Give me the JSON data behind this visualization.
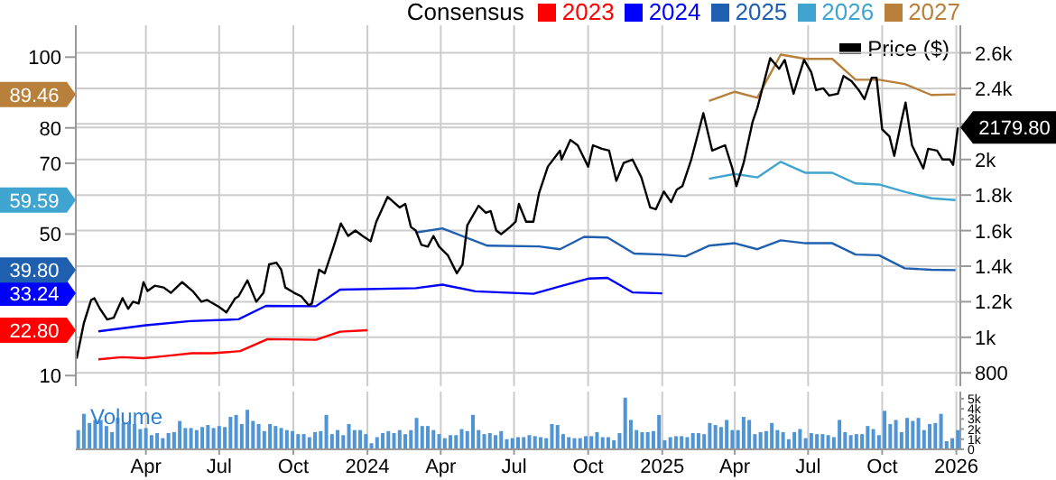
{
  "chart_data": [
    {
      "type": "line",
      "legend_title": "Consensus",
      "legend": "top right",
      "grid": true,
      "tick_labels": "y",
      "xlim": [
        "2023-01-04",
        "2026-01-06"
      ],
      "xticks": [
        {
          "value": "2023-04-01",
          "label": null
        },
        {
          "value": "2023-07-01",
          "label": null
        },
        {
          "value": "2023-10-01",
          "label": null
        },
        {
          "value": "2024-01-01",
          "label": null
        },
        {
          "value": "2024-04-01",
          "label": null
        },
        {
          "value": "2024-07-01",
          "label": null
        },
        {
          "value": "2024-10-01",
          "label": null
        },
        {
          "value": "2025-01-01",
          "label": null
        },
        {
          "value": "2025-04-01",
          "label": null
        },
        {
          "value": "2025-07-01",
          "label": null
        },
        {
          "value": "2025-10-01",
          "label": null
        },
        {
          "value": "2026-01-01",
          "label": null
        }
      ],
      "ylim": [
        7,
        109
      ],
      "yticks": [
        10,
        {
          "value": 22.8,
          "label": "22.80"
        },
        {
          "value": 33.24,
          "label": "33.24"
        },
        {
          "value": 39.8,
          "label": "39.80"
        },
        50,
        {
          "value": 59.59,
          "label": "59.59"
        },
        70,
        80,
        {
          "value": 89.46,
          "label": "89.46"
        },
        100
      ],
      "y2lim": [
        725,
        2755
      ],
      "y2ticks": [
        800,
        {
          "value": 1000,
          "label": "1k"
        },
        {
          "value": 1200,
          "label": "1.2k"
        },
        {
          "value": 1400,
          "label": "1.4k"
        },
        {
          "value": 1600,
          "label": "1.6k"
        },
        {
          "value": 1800,
          "label": "1.8k"
        },
        {
          "value": 2000,
          "label": "2k"
        },
        {
          "value": 2179.8,
          "label": "2179.80"
        },
        {
          "value": 2200,
          "label": null
        },
        {
          "value": 2400,
          "label": "2.4k"
        },
        {
          "value": 2600,
          "label": "2.6k"
        }
      ],
      "series": [
        {
          "name": "2023",
          "color": "#ff0000",
          "x": [
            "2023-02-01",
            "2023-03-02",
            "2023-03-29",
            "2023-04-25",
            "2023-05-28",
            "2023-06-22",
            "2023-07-27",
            "2023-08-30",
            "2023-10-29",
            "2023-11-28",
            "2024-01-01"
          ],
          "values": [
            14.6,
            15.2,
            14.9,
            15.5,
            16.3,
            16.3,
            16.9,
            20.3,
            20.1,
            22.4,
            22.8
          ]
        },
        {
          "name": "2024",
          "color": "#0000ff",
          "x": [
            "2023-02-01",
            "2023-04-01",
            "2023-05-26",
            "2023-07-25",
            "2023-08-28",
            "2023-10-29",
            "2023-11-28",
            "2024-03-01",
            "2024-04-03",
            "2024-05-14",
            "2024-07-25",
            "2024-08-27",
            "2024-10-01",
            "2024-10-25",
            "2024-11-25",
            "2025-01-01"
          ],
          "values": [
            22.5,
            24.2,
            25.4,
            25.9,
            29.7,
            29.6,
            34.3,
            34.7,
            35.7,
            33.8,
            33.1,
            35.2,
            37.4,
            37.6,
            33.5,
            33.24
          ]
        },
        {
          "name": "2025",
          "color": "#1f5fb0",
          "x": [
            "2024-03-01",
            "2024-04-03",
            "2024-05-29",
            "2024-08-01",
            "2024-08-27",
            "2024-09-26",
            "2024-10-25",
            "2024-11-27",
            "2025-01-01",
            "2025-01-30",
            "2025-02-28",
            "2025-04-01",
            "2025-04-29",
            "2025-05-28",
            "2025-06-28",
            "2025-07-31",
            "2025-08-29",
            "2025-09-27",
            "2025-10-29",
            "2025-12-01",
            "2025-12-31"
          ],
          "values": [
            50.4,
            51.6,
            46.7,
            46.5,
            45.7,
            49.2,
            49.0,
            44.5,
            44.2,
            43.7,
            46.7,
            47.4,
            45.7,
            48.2,
            47.4,
            47.4,
            44.2,
            44.0,
            40.3,
            39.9,
            39.8
          ]
        },
        {
          "name": "2026",
          "color": "#3fa4d0",
          "x": [
            "2025-02-28",
            "2025-04-01",
            "2025-04-29",
            "2025-05-28",
            "2025-06-28",
            "2025-07-31",
            "2025-08-29",
            "2025-09-27",
            "2025-10-29",
            "2025-12-01",
            "2025-12-31"
          ],
          "values": [
            65.6,
            67.0,
            66.0,
            70.4,
            67.3,
            67.3,
            64.3,
            64.0,
            61.9,
            60.1,
            59.59
          ]
        },
        {
          "name": "2027",
          "color": "#b8803a",
          "x": [
            "2025-02-28",
            "2025-04-01",
            "2025-04-29",
            "2025-05-28",
            "2025-06-28",
            "2025-07-31",
            "2025-08-29",
            "2025-09-27",
            "2025-10-29",
            "2025-12-01",
            "2025-12-31"
          ],
          "values": [
            87.6,
            90.2,
            88.5,
            100.7,
            99.5,
            99.5,
            93.6,
            93.6,
            92.4,
            89.3,
            89.46
          ]
        },
        {
          "name": "Price ($)",
          "color": "#000000",
          "axis": "y2",
          "x": [
            "2023-01-05",
            "2023-01-14",
            "2023-01-23",
            "2023-01-27",
            "2023-02-03",
            "2023-02-12",
            "2023-02-20",
            "2023-03-03",
            "2023-03-10",
            "2023-03-16",
            "2023-03-23",
            "2023-03-29",
            "2023-04-03",
            "2023-04-12",
            "2023-04-23",
            "2023-05-02",
            "2023-05-16",
            "2023-05-29",
            "2023-06-09",
            "2023-06-16",
            "2023-07-01",
            "2023-07-10",
            "2023-07-21",
            "2023-07-25",
            "2023-08-05",
            "2023-08-16",
            "2023-08-25",
            "2023-09-01",
            "2023-09-10",
            "2023-09-16",
            "2023-09-21",
            "2023-10-02",
            "2023-10-11",
            "2023-10-20",
            "2023-10-24",
            "2023-11-02",
            "2023-11-09",
            "2023-11-20",
            "2023-11-29",
            "2023-12-08",
            "2023-12-17",
            "2023-12-26",
            "2024-01-05",
            "2024-01-12",
            "2024-01-26",
            "2024-02-10",
            "2024-02-17",
            "2024-02-24",
            "2024-03-01",
            "2024-03-08",
            "2024-03-16",
            "2024-03-23",
            "2024-03-30",
            "2024-04-10",
            "2024-04-21",
            "2024-04-28",
            "2024-05-04",
            "2024-05-18",
            "2024-05-27",
            "2024-06-02",
            "2024-06-09",
            "2024-06-15",
            "2024-06-26",
            "2024-07-03",
            "2024-07-07",
            "2024-07-16",
            "2024-07-25",
            "2024-08-01",
            "2024-08-12",
            "2024-08-27",
            "2024-08-29",
            "2024-09-09",
            "2024-09-18",
            "2024-10-01",
            "2024-10-07",
            "2024-10-18",
            "2024-10-27",
            "2024-11-05",
            "2024-11-14",
            "2024-11-25",
            "2024-12-06",
            "2024-12-17",
            "2024-12-24",
            "2025-01-03",
            "2025-01-12",
            "2025-01-19",
            "2025-01-26",
            "2025-02-06",
            "2025-02-21",
            "2025-03-04",
            "2025-03-20",
            "2025-03-29",
            "2025-04-03",
            "2025-04-12",
            "2025-04-23",
            "2025-04-29",
            "2025-05-15",
            "2025-05-26",
            "2025-06-02",
            "2025-06-13",
            "2025-06-19",
            "2025-06-26",
            "2025-07-05",
            "2025-07-11",
            "2025-07-20",
            "2025-07-27",
            "2025-08-07",
            "2025-08-14",
            "2025-08-24",
            "2025-09-02",
            "2025-09-09",
            "2025-09-18",
            "2025-09-24",
            "2025-10-01",
            "2025-10-10",
            "2025-10-16",
            "2025-10-25",
            "2025-10-30",
            "2025-11-07",
            "2025-11-21",
            "2025-11-27",
            "2025-12-08",
            "2025-12-15",
            "2025-12-24",
            "2025-12-28",
            "2026-01-03"
          ],
          "values": [
            880,
            1080,
            1210,
            1220,
            1160,
            1100,
            1110,
            1220,
            1160,
            1200,
            1190,
            1310,
            1260,
            1290,
            1280,
            1250,
            1310,
            1260,
            1200,
            1210,
            1170,
            1140,
            1220,
            1230,
            1320,
            1200,
            1250,
            1410,
            1420,
            1380,
            1280,
            1250,
            1230,
            1180,
            1190,
            1380,
            1360,
            1510,
            1640,
            1570,
            1600,
            1570,
            1540,
            1650,
            1790,
            1730,
            1750,
            1620,
            1600,
            1520,
            1510,
            1570,
            1510,
            1460,
            1360,
            1410,
            1630,
            1740,
            1700,
            1710,
            1600,
            1580,
            1620,
            1650,
            1750,
            1650,
            1650,
            1810,
            1960,
            2050,
            2000,
            2110,
            2080,
            1960,
            2080,
            2060,
            2050,
            1880,
            1980,
            2000,
            1900,
            1730,
            1720,
            1820,
            1760,
            1830,
            1850,
            2000,
            2260,
            2050,
            2080,
            1950,
            1850,
            1980,
            2210,
            2290,
            2570,
            2510,
            2560,
            2370,
            2460,
            2560,
            2490,
            2390,
            2400,
            2360,
            2370,
            2470,
            2440,
            2390,
            2340,
            2460,
            2460,
            2170,
            2130,
            2020,
            2220,
            2320,
            2080,
            1950,
            2060,
            2050,
            2000,
            2000,
            1970,
            2179.8
          ]
        }
      ]
    },
    {
      "type": "bar",
      "title": "Volume",
      "grid": "x",
      "xlim": [
        "2023-01-04",
        "2026-01-06"
      ],
      "xticks": [
        {
          "value": "2023-04-01",
          "label": "Apr"
        },
        {
          "value": "2023-07-01",
          "label": "Jul"
        },
        {
          "value": "2023-10-01",
          "label": "Oct"
        },
        "2024",
        {
          "value": "2024-04-01",
          "label": "Apr"
        },
        {
          "value": "2024-07-01",
          "label": "Jul"
        },
        {
          "value": "2024-10-01",
          "label": "Oct"
        },
        "2025",
        {
          "value": "2025-04-01",
          "label": "Apr"
        },
        {
          "value": "2025-07-01",
          "label": "Jul"
        },
        {
          "value": "2025-10-01",
          "label": "Oct"
        },
        "2026"
      ],
      "ylim": [
        0,
        5700
      ],
      "yticks": [
        0,
        {
          "value": 1000,
          "label": "1k"
        },
        {
          "value": 2000,
          "label": "2k"
        },
        {
          "value": 3000,
          "label": "3k"
        },
        {
          "value": 4000,
          "label": "4k"
        },
        {
          "value": 5000,
          "label": "5k"
        }
      ],
      "series": [
        {
          "color": "#4f94d4",
          "x": [
            "2023-01-06",
            "2023-01-13",
            "2023-01-20",
            "2023-01-27",
            "2023-02-03",
            "2023-02-10",
            "2023-02-17",
            "2023-02-24",
            "2023-03-03",
            "2023-03-10",
            "2023-03-17",
            "2023-03-24",
            "2023-03-31",
            "2023-04-07",
            "2023-04-14",
            "2023-04-21",
            "2023-04-28",
            "2023-05-05",
            "2023-05-12",
            "2023-05-19",
            "2023-05-26",
            "2023-06-02",
            "2023-06-09",
            "2023-06-16",
            "2023-06-23",
            "2023-06-30",
            "2023-07-07",
            "2023-07-14",
            "2023-07-21",
            "2023-07-28",
            "2023-08-04",
            "2023-08-11",
            "2023-08-18",
            "2023-08-25",
            "2023-09-01",
            "2023-09-08",
            "2023-09-15",
            "2023-09-22",
            "2023-09-29",
            "2023-10-06",
            "2023-10-13",
            "2023-10-20",
            "2023-10-27",
            "2023-11-03",
            "2023-11-10",
            "2023-11-17",
            "2023-11-24",
            "2023-12-01",
            "2023-12-08",
            "2023-12-15",
            "2023-12-22",
            "2023-12-29",
            "2024-01-05",
            "2024-01-12",
            "2024-01-19",
            "2024-01-26",
            "2024-02-02",
            "2024-02-09",
            "2024-02-16",
            "2024-02-23",
            "2024-03-01",
            "2024-03-08",
            "2024-03-15",
            "2024-03-22",
            "2024-03-29",
            "2024-04-05",
            "2024-04-12",
            "2024-04-19",
            "2024-04-26",
            "2024-05-03",
            "2024-05-10",
            "2024-05-17",
            "2024-05-24",
            "2024-05-31",
            "2024-06-07",
            "2024-06-14",
            "2024-06-21",
            "2024-06-28",
            "2024-07-05",
            "2024-07-12",
            "2024-07-19",
            "2024-07-26",
            "2024-08-02",
            "2024-08-09",
            "2024-08-16",
            "2024-08-23",
            "2024-08-30",
            "2024-09-06",
            "2024-09-13",
            "2024-09-20",
            "2024-09-27",
            "2024-10-04",
            "2024-10-11",
            "2024-10-18",
            "2024-10-25",
            "2024-11-01",
            "2024-11-08",
            "2024-11-15",
            "2024-11-22",
            "2024-11-29",
            "2024-12-06",
            "2024-12-13",
            "2024-12-20",
            "2024-12-27",
            "2025-01-03",
            "2025-01-10",
            "2025-01-17",
            "2025-01-24",
            "2025-01-31",
            "2025-02-07",
            "2025-02-14",
            "2025-02-21",
            "2025-02-28",
            "2025-03-07",
            "2025-03-14",
            "2025-03-21",
            "2025-03-28",
            "2025-04-04",
            "2025-04-11",
            "2025-04-18",
            "2025-04-25",
            "2025-05-02",
            "2025-05-09",
            "2025-05-16",
            "2025-05-23",
            "2025-05-30",
            "2025-06-06",
            "2025-06-13",
            "2025-06-20",
            "2025-06-27",
            "2025-07-04",
            "2025-07-11",
            "2025-07-18",
            "2025-07-25",
            "2025-08-01",
            "2025-08-08",
            "2025-08-15",
            "2025-08-22",
            "2025-08-29",
            "2025-09-05",
            "2025-09-12",
            "2025-09-19",
            "2025-09-26",
            "2025-10-03",
            "2025-10-10",
            "2025-10-17",
            "2025-10-24",
            "2025-10-31",
            "2025-11-07",
            "2025-11-14",
            "2025-11-21",
            "2025-11-28",
            "2025-12-05",
            "2025-12-12",
            "2025-12-19",
            "2025-12-26",
            "2026-01-02"
          ],
          "values": [
            1900,
            3500,
            2600,
            2900,
            2900,
            2300,
            1700,
            3100,
            2600,
            2600,
            2500,
            2000,
            2100,
            1400,
            1600,
            1100,
            1600,
            1700,
            2800,
            2100,
            2100,
            1900,
            2200,
            2400,
            2100,
            2300,
            2200,
            3200,
            3400,
            2500,
            3900,
            2800,
            2500,
            1800,
            2500,
            2300,
            2100,
            1900,
            1800,
            1500,
            1500,
            1200,
            1700,
            1800,
            3400,
            1500,
            1900,
            1400,
            2500,
            1900,
            1900,
            1500,
            600,
            1200,
            1600,
            1800,
            1600,
            1900,
            1500,
            1900,
            3100,
            2300,
            2300,
            1900,
            1500,
            1100,
            1400,
            1400,
            2000,
            1800,
            3400,
            1900,
            1500,
            1600,
            1400,
            1800,
            1000,
            1100,
            1200,
            1200,
            1400,
            1300,
            1200,
            1100,
            2500,
            2400,
            1500,
            1200,
            1100,
            1100,
            1300,
            1300,
            1700,
            1200,
            1200,
            900,
            1600,
            5100,
            2900,
            1900,
            1700,
            1700,
            1800,
            3400,
            900,
            1200,
            1300,
            1300,
            1200,
            1600,
            1600,
            1500,
            2600,
            2400,
            2200,
            2900,
            1900,
            1900,
            3200,
            2900,
            1500,
            1700,
            1800,
            2600,
            1900,
            1700,
            1000,
            1700,
            2000,
            1100,
            1600,
            1500,
            1500,
            1400,
            1200,
            2900,
            1700,
            1400,
            1500,
            1500,
            2300,
            2000,
            1400,
            3800,
            2500,
            2900,
            1700,
            3100,
            2800,
            3100,
            1900,
            2500,
            2600,
            3500,
            800,
            1100,
            1900
          ]
        }
      ]
    }
  ]
}
